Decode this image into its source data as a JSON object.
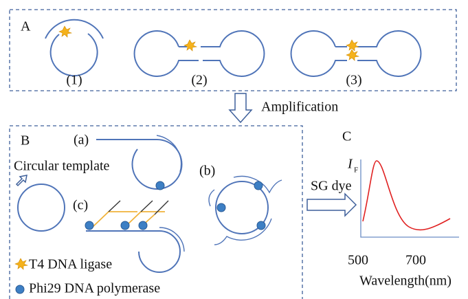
{
  "panel_a": {
    "label": "A",
    "items": [
      "(1)",
      "(2)",
      "(3)"
    ]
  },
  "step": "Amplification",
  "panel_b": {
    "label": "B",
    "a": "(a)",
    "b": "(b)",
    "c": "(c)",
    "template": "Circular template"
  },
  "panel_c": {
    "label": "C",
    "dye": "SG dye",
    "y_label": "I",
    "y_label_sub": "F",
    "x_ticks": [
      500,
      700
    ],
    "x_label": "Wavelength(nm)"
  },
  "legend": [
    "T4 DNA ligase",
    "Phi29 DNA polymerase"
  ]
}
